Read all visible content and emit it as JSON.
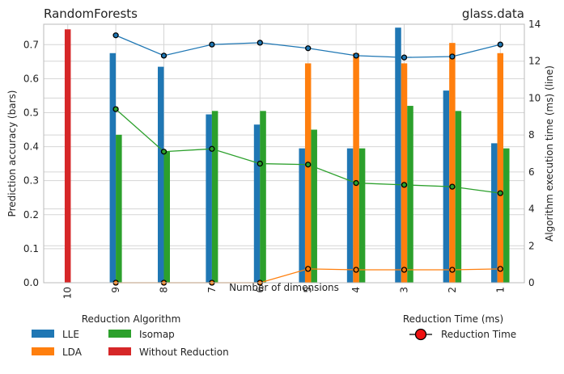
{
  "chart_data": {
    "type": "bar",
    "title_left": "RandomForests",
    "title_right": "glass.data",
    "xlabel": "Number of dimensions",
    "ylabel_left": "Prediction accuracy (bars)",
    "ylabel_right": "Algorithm execution time (ms) (line)",
    "categories": [
      "10",
      "9",
      "8",
      "7",
      "6",
      "5",
      "4",
      "3",
      "2",
      "1"
    ],
    "ylim_left": [
      0,
      0.76
    ],
    "yticks_left": [
      "0.0",
      "0.1",
      "0.2",
      "0.3",
      "0.4",
      "0.5",
      "0.6",
      "0.7"
    ],
    "ylim_right": [
      0,
      14
    ],
    "yticks_right": [
      "0",
      "2",
      "4",
      "6",
      "8",
      "10",
      "12",
      "14"
    ],
    "grid": true,
    "colors": {
      "LLE": "#1f77b4",
      "LDA": "#ff7f0e",
      "Isomap": "#2ca02c",
      "Without Reduction": "#d62728"
    },
    "bar_series": [
      {
        "name": "LLE",
        "values": [
          null,
          0.675,
          0.635,
          0.495,
          0.465,
          0.395,
          0.395,
          0.75,
          0.565,
          0.41
        ]
      },
      {
        "name": "LDA",
        "values": [
          null,
          null,
          null,
          null,
          null,
          0.645,
          0.675,
          0.645,
          0.705,
          0.675
        ]
      },
      {
        "name": "Isomap",
        "values": [
          null,
          0.435,
          0.385,
          0.505,
          0.505,
          0.45,
          0.395,
          0.52,
          0.505,
          0.395
        ]
      },
      {
        "name": "Without Reduction",
        "values": [
          0.745,
          null,
          null,
          null,
          null,
          null,
          null,
          null,
          null,
          null
        ]
      }
    ],
    "line_series": [
      {
        "name": "LLE",
        "values": [
          null,
          13.4,
          12.3,
          12.9,
          13.0,
          12.7,
          12.3,
          12.2,
          12.25,
          12.9
        ]
      },
      {
        "name": "LDA",
        "values": [
          null,
          0.0,
          0.0,
          0.0,
          0.0,
          0.75,
          0.7,
          0.7,
          0.7,
          0.75
        ]
      },
      {
        "name": "Isomap",
        "values": [
          null,
          9.4,
          7.1,
          7.25,
          6.45,
          6.4,
          5.4,
          5.3,
          5.2,
          4.85
        ]
      }
    ],
    "legend_left": {
      "title": "Reduction Algorithm",
      "entries": [
        "LLE",
        "LDA",
        "Isomap",
        "Without Reduction"
      ]
    },
    "legend_right": {
      "title": "Reduction Time (ms)",
      "entry": "Reduction Time",
      "marker_color": "#ee1111"
    }
  }
}
